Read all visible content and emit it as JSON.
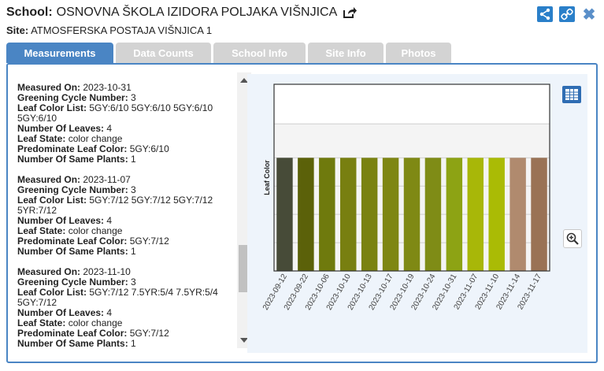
{
  "header": {
    "school_label": "School:",
    "school_name": "OSNOVNA ŠKOLA IZIDORA POLJAKA VIŠNJICA",
    "site_label": "Site:",
    "site_name": "ATMOSFERSKA POSTAJA VIŠNJICA 1",
    "icons": [
      "share-icon",
      "link-icon",
      "close-icon",
      "external-link-icon"
    ]
  },
  "tabs": [
    {
      "label": "Measurements",
      "active": true
    },
    {
      "label": "Data Counts",
      "active": false
    },
    {
      "label": "School Info",
      "active": false
    },
    {
      "label": "Site Info",
      "active": false
    },
    {
      "label": "Photos",
      "active": false
    }
  ],
  "labels": {
    "measured_on": "Measured On:",
    "greening_cycle": "Greening Cycle Number:",
    "leaf_color_list": "Leaf Color List:",
    "number_of_leaves": "Number Of Leaves:",
    "leaf_state": "Leaf State:",
    "predominate_color": "Predominate Leaf Color:",
    "same_plants": "Number Of Same Plants:"
  },
  "records": [
    {
      "measured_on": "2023-10-31",
      "greening_cycle": "3",
      "leaf_color_list": "5GY:6/10 5GY:6/10 5GY:6/10 5GY:6/10",
      "number_of_leaves": "4",
      "leaf_state": "color change",
      "predominate_color": "5GY:6/10",
      "same_plants": "1"
    },
    {
      "measured_on": "2023-11-07",
      "greening_cycle": "3",
      "leaf_color_list": "5GY:7/12 5GY:7/12 5GY:7/12 5YR:7/12",
      "number_of_leaves": "4",
      "leaf_state": "color change",
      "predominate_color": "5GY:7/12",
      "same_plants": "1"
    },
    {
      "measured_on": "2023-11-10",
      "greening_cycle": "3",
      "leaf_color_list": "5GY:7/12 7.5YR:5/4 7.5YR:5/4 5GY:7/12",
      "number_of_leaves": "4",
      "leaf_state": "color change",
      "predominate_color": "5GY:7/12",
      "same_plants": "1"
    }
  ],
  "chart_data": {
    "type": "bar",
    "ylabel": "Leaf Color",
    "xlabel": "",
    "categories": [
      "2023-09-12",
      "2023-09-22",
      "2023-10-06",
      "2023-10-10",
      "2023-10-13",
      "2023-10-17",
      "2023-10-19",
      "2023-10-24",
      "2023-10-31",
      "2023-11-07",
      "2023-11-10",
      "2023-11-14",
      "2023-11-17"
    ],
    "values": [
      1,
      1,
      1,
      1,
      1,
      1,
      1,
      1,
      1,
      1,
      1,
      1,
      1
    ],
    "ylim": [
      0,
      1.65
    ],
    "bar_colors": [
      "#474b38",
      "#5b6109",
      "#6f7a0d",
      "#787f10",
      "#7a8211",
      "#7e8613",
      "#7f8914",
      "#7f8c16",
      "#8da314",
      "#a8b708",
      "#aabb05",
      "#b08a6e",
      "#9a7255"
    ],
    "grid": true
  },
  "icons": {
    "table": "table-icon",
    "zoom": "zoom-in-icon"
  }
}
